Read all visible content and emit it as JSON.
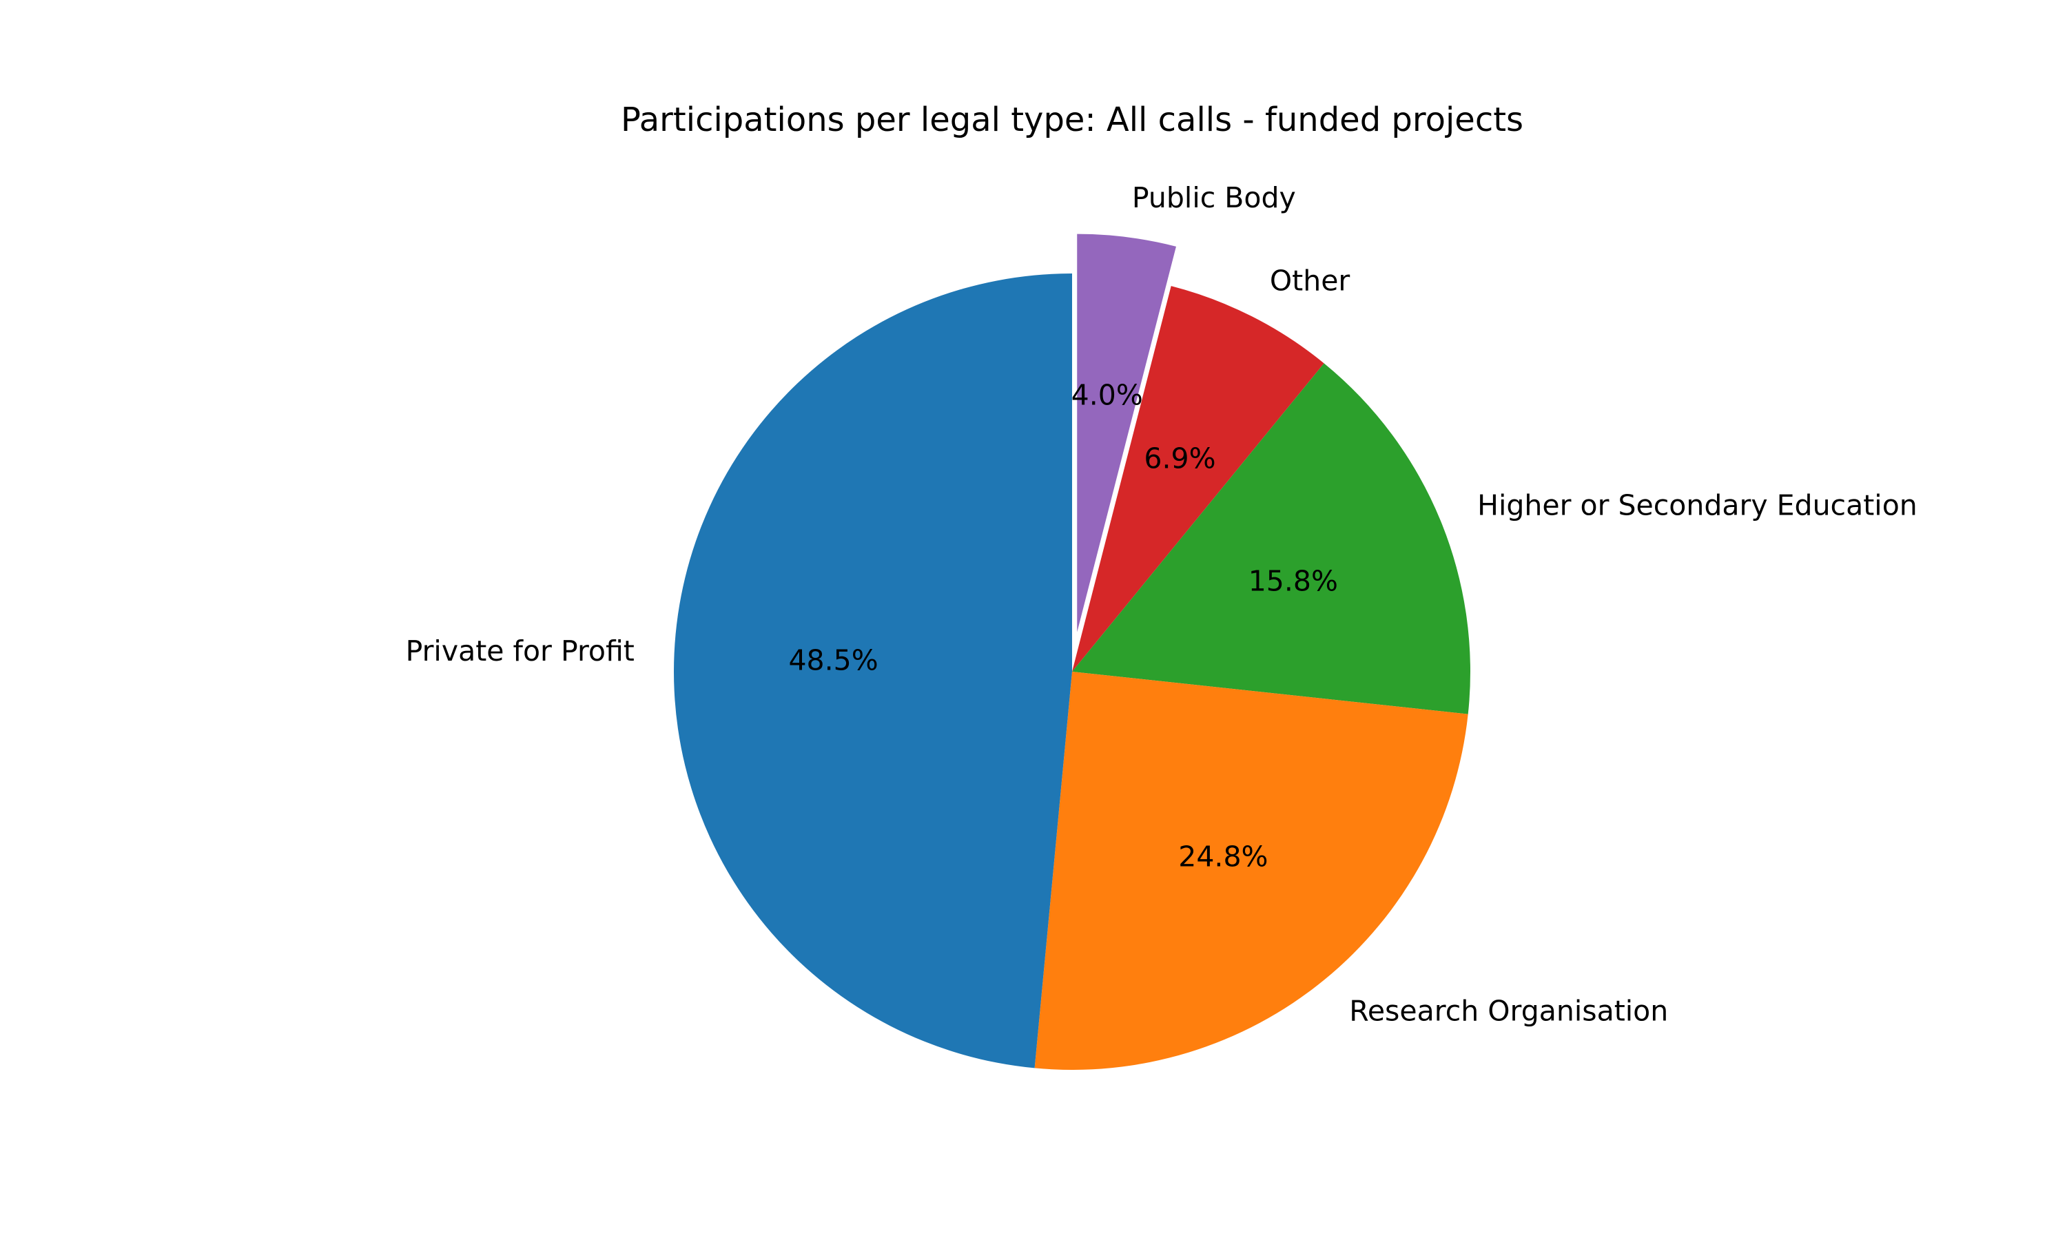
{
  "chart_data": {
    "type": "pie",
    "title": "Participations per legal type: All calls - funded projects",
    "start_angle_deg": 90,
    "direction": "clockwise",
    "slices": [
      {
        "label": "Public Body",
        "value": 4.0,
        "percent_label": "4.0%",
        "color": "#9467bd",
        "exploded": true
      },
      {
        "label": "Other",
        "value": 6.9,
        "percent_label": "6.9%",
        "color": "#d62728",
        "exploded": false
      },
      {
        "label": "Higher or Secondary Education",
        "value": 15.8,
        "percent_label": "15.8%",
        "color": "#2ca02c",
        "exploded": false
      },
      {
        "label": "Research Organisation",
        "value": 24.8,
        "percent_label": "24.8%",
        "color": "#ff7f0e",
        "exploded": false
      },
      {
        "label": "Private for Profit",
        "value": 48.5,
        "percent_label": "48.5%",
        "color": "#1f77b4",
        "exploded": false
      }
    ]
  }
}
